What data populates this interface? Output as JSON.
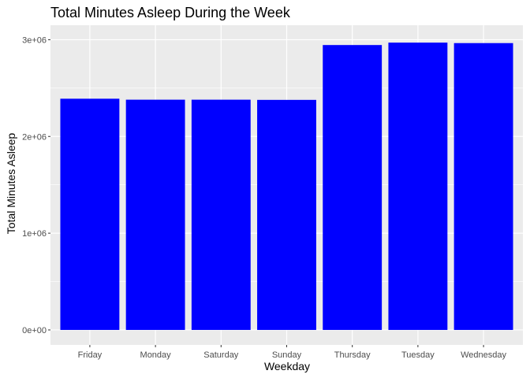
{
  "chart_data": {
    "type": "bar",
    "title": "Total Minutes Asleep During the Week",
    "xlabel": "Weekday",
    "ylabel": "Total Minutes Asleep",
    "categories": [
      "Friday",
      "Monday",
      "Saturday",
      "Sunday",
      "Thursday",
      "Tuesday",
      "Wednesday"
    ],
    "values": [
      2390000,
      2380000,
      2380000,
      2378000,
      2945000,
      2970000,
      2965000
    ],
    "ylim": [
      -155000,
      3150000
    ],
    "yticks": [
      0,
      1000000,
      2000000,
      3000000
    ],
    "ytick_labels": [
      "0e+00",
      "1e+06",
      "2e+06",
      "3e+06"
    ],
    "grid": true,
    "legend": "none",
    "colors": {
      "bar": "#0000ff",
      "panel_background": "#ebebeb",
      "grid_major": "#ffffff",
      "tick_text": "#4d4d4d"
    }
  }
}
